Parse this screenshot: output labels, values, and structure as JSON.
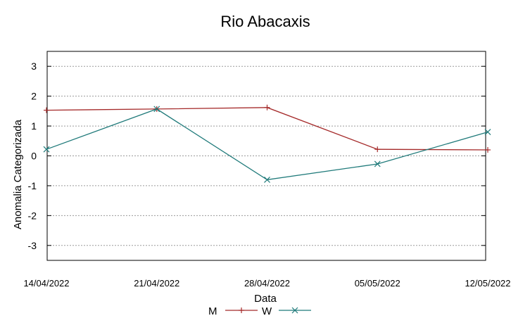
{
  "chart_data": {
    "type": "line",
    "title": "Rio Abacaxis",
    "xlabel": "Data",
    "ylabel": "Anomalia Categorizada",
    "categories": [
      "14/04/2022",
      "21/04/2022",
      "28/04/2022",
      "05/05/2022",
      "12/05/2022"
    ],
    "ylim": [
      -3.5,
      3.5
    ],
    "yticks": [
      -3,
      -2,
      -1,
      0,
      1,
      2,
      3
    ],
    "grid": true,
    "legend_position": "bottom",
    "series": [
      {
        "name": "M",
        "color": "#a52a2a",
        "marker": "plus",
        "values": [
          1.53,
          1.57,
          1.62,
          0.22,
          0.2
        ]
      },
      {
        "name": "W",
        "color": "#1f7a7a",
        "marker": "cross",
        "values": [
          0.22,
          1.57,
          -0.8,
          -0.27,
          0.8
        ]
      }
    ]
  }
}
